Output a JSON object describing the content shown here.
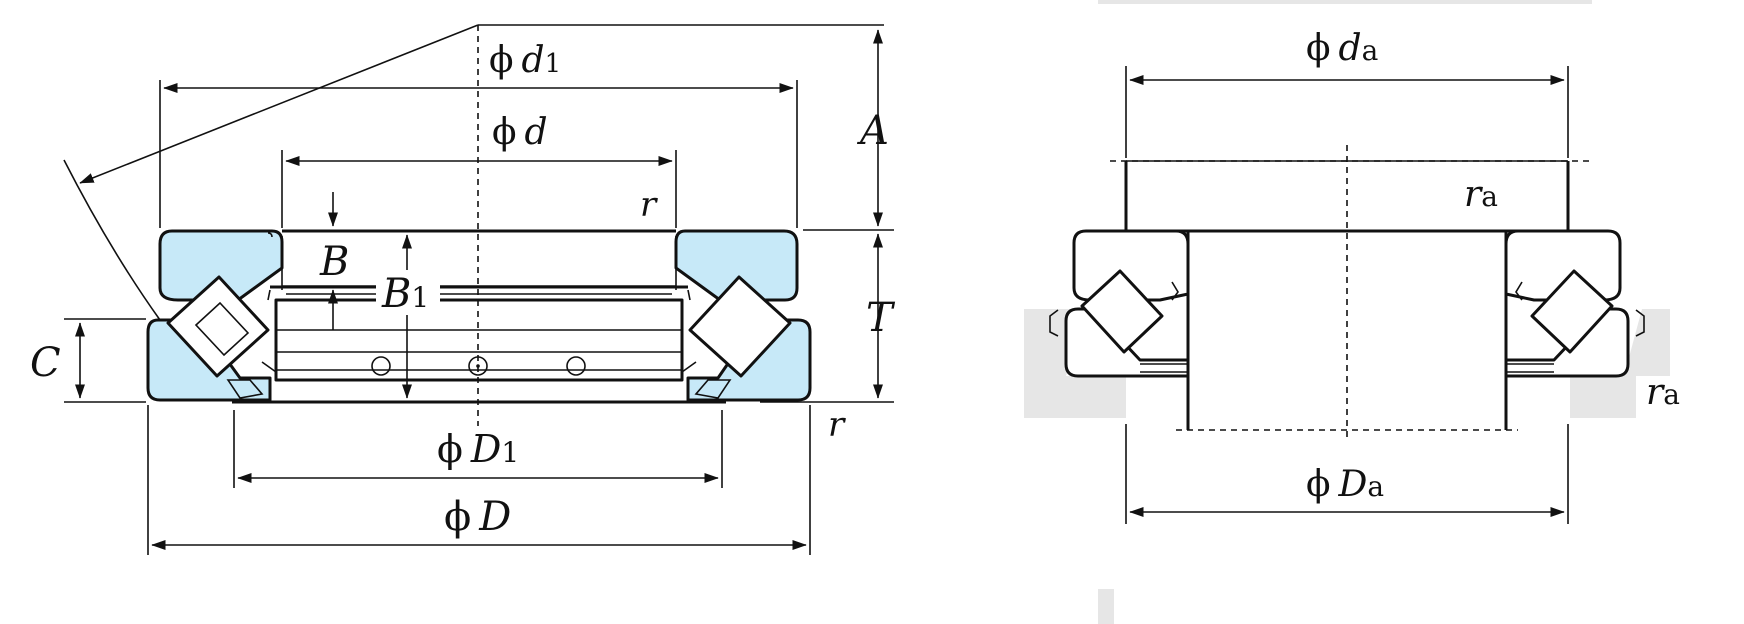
{
  "colors": {
    "ring_fill": "#c7e9f8",
    "housing_fill": "#e6e6e6",
    "line": "#111111",
    "background": "#ffffff"
  },
  "left_view": {
    "d1": {
      "symbol": "ϕ",
      "letter": "d",
      "sub": "1"
    },
    "d": {
      "symbol": "ϕ",
      "letter": "d"
    },
    "D1": {
      "symbol": "ϕ",
      "letter": "D",
      "sub": "1"
    },
    "D": {
      "symbol": "ϕ",
      "letter": "D"
    },
    "A": "A",
    "T": "T",
    "C": "C",
    "B": "B",
    "B1": {
      "letter": "B",
      "sub": "1"
    },
    "r_top": "r",
    "r_bottom": "r"
  },
  "right_view": {
    "da": {
      "symbol": "ϕ",
      "letter": "d",
      "sub": "a"
    },
    "Da": {
      "symbol": "ϕ",
      "letter": "D",
      "sub": "a"
    },
    "ra_top": {
      "letter": "r",
      "sub": "a"
    },
    "ra_bottom": {
      "letter": "r",
      "sub": "a"
    }
  }
}
